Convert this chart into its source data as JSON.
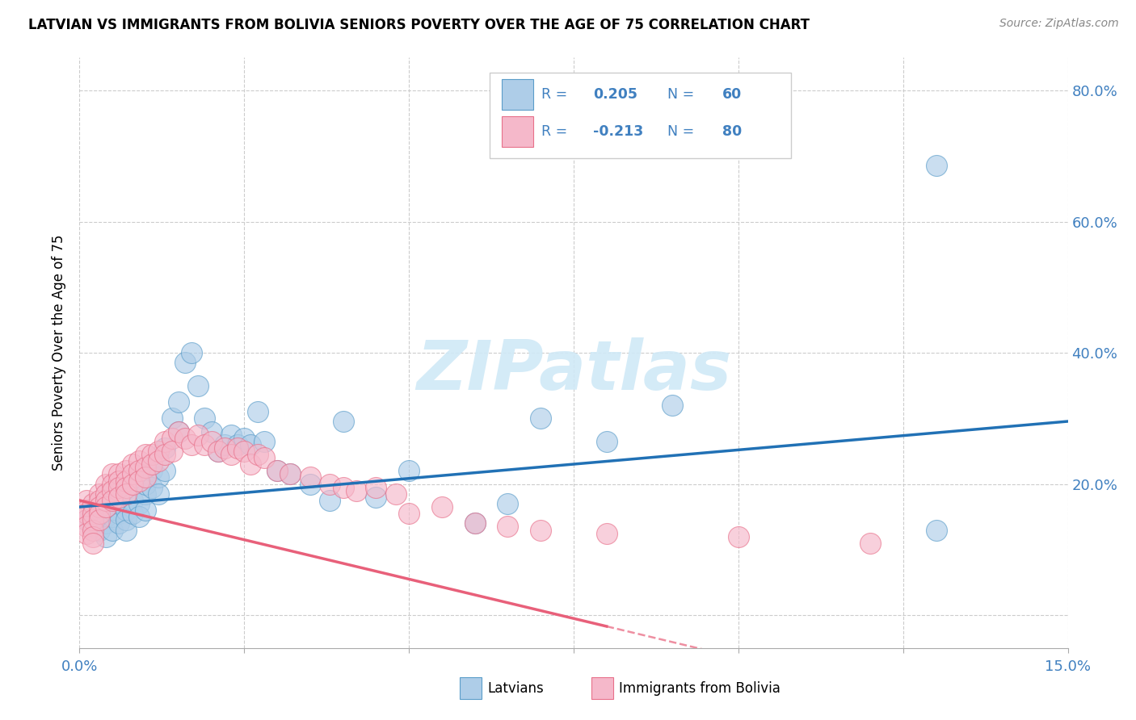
{
  "title": "LATVIAN VS IMMIGRANTS FROM BOLIVIA SENIORS POVERTY OVER THE AGE OF 75 CORRELATION CHART",
  "source": "Source: ZipAtlas.com",
  "ylabel": "Seniors Poverty Over the Age of 75",
  "r1": 0.205,
  "n1": 60,
  "r2": -0.213,
  "n2": 80,
  "blue_fill": "#aecde8",
  "blue_edge": "#5b9dc9",
  "pink_fill": "#f5b8ca",
  "pink_edge": "#e8708a",
  "blue_line": "#2171b5",
  "pink_line": "#e8607a",
  "watermark_color": "#d0e9f7",
  "grid_color": "#cccccc",
  "tick_color": "#4080c0",
  "xlim": [
    0.0,
    0.15
  ],
  "ylim": [
    -0.05,
    0.85
  ],
  "lv_x": [
    0.001,
    0.002,
    0.002,
    0.003,
    0.003,
    0.003,
    0.004,
    0.004,
    0.004,
    0.005,
    0.005,
    0.005,
    0.006,
    0.006,
    0.007,
    0.007,
    0.007,
    0.008,
    0.008,
    0.009,
    0.009,
    0.01,
    0.01,
    0.01,
    0.011,
    0.011,
    0.012,
    0.012,
    0.013,
    0.013,
    0.014,
    0.015,
    0.015,
    0.016,
    0.017,
    0.018,
    0.019,
    0.02,
    0.021,
    0.022,
    0.023,
    0.024,
    0.025,
    0.026,
    0.027,
    0.028,
    0.03,
    0.032,
    0.035,
    0.038,
    0.04,
    0.045,
    0.05,
    0.06,
    0.065,
    0.07,
    0.08,
    0.09,
    0.13,
    0.13
  ],
  "lv_y": [
    0.145,
    0.155,
    0.135,
    0.145,
    0.13,
    0.16,
    0.14,
    0.15,
    0.12,
    0.15,
    0.16,
    0.13,
    0.155,
    0.14,
    0.16,
    0.145,
    0.13,
    0.175,
    0.155,
    0.17,
    0.15,
    0.185,
    0.2,
    0.16,
    0.22,
    0.195,
    0.21,
    0.185,
    0.255,
    0.22,
    0.3,
    0.325,
    0.28,
    0.385,
    0.4,
    0.35,
    0.3,
    0.28,
    0.25,
    0.26,
    0.275,
    0.26,
    0.27,
    0.26,
    0.31,
    0.265,
    0.22,
    0.215,
    0.2,
    0.175,
    0.295,
    0.18,
    0.22,
    0.14,
    0.17,
    0.3,
    0.265,
    0.32,
    0.685,
    0.13
  ],
  "bo_x": [
    0.001,
    0.001,
    0.001,
    0.001,
    0.001,
    0.001,
    0.002,
    0.002,
    0.002,
    0.002,
    0.002,
    0.002,
    0.003,
    0.003,
    0.003,
    0.003,
    0.003,
    0.004,
    0.004,
    0.004,
    0.004,
    0.005,
    0.005,
    0.005,
    0.005,
    0.006,
    0.006,
    0.006,
    0.006,
    0.007,
    0.007,
    0.007,
    0.007,
    0.008,
    0.008,
    0.008,
    0.009,
    0.009,
    0.009,
    0.01,
    0.01,
    0.01,
    0.011,
    0.011,
    0.012,
    0.012,
    0.013,
    0.013,
    0.014,
    0.014,
    0.015,
    0.016,
    0.017,
    0.018,
    0.019,
    0.02,
    0.021,
    0.022,
    0.023,
    0.024,
    0.025,
    0.026,
    0.027,
    0.028,
    0.03,
    0.032,
    0.035,
    0.038,
    0.04,
    0.042,
    0.045,
    0.048,
    0.05,
    0.055,
    0.06,
    0.065,
    0.07,
    0.08,
    0.1,
    0.12
  ],
  "bo_y": [
    0.175,
    0.16,
    0.145,
    0.155,
    0.135,
    0.125,
    0.17,
    0.155,
    0.145,
    0.13,
    0.12,
    0.11,
    0.185,
    0.175,
    0.165,
    0.155,
    0.145,
    0.2,
    0.185,
    0.175,
    0.165,
    0.215,
    0.2,
    0.19,
    0.175,
    0.215,
    0.205,
    0.195,
    0.18,
    0.22,
    0.205,
    0.195,
    0.185,
    0.23,
    0.215,
    0.2,
    0.235,
    0.22,
    0.205,
    0.245,
    0.225,
    0.21,
    0.245,
    0.23,
    0.25,
    0.235,
    0.265,
    0.245,
    0.27,
    0.25,
    0.28,
    0.27,
    0.26,
    0.275,
    0.26,
    0.265,
    0.25,
    0.255,
    0.245,
    0.255,
    0.25,
    0.23,
    0.245,
    0.24,
    0.22,
    0.215,
    0.21,
    0.2,
    0.195,
    0.19,
    0.195,
    0.185,
    0.155,
    0.165,
    0.14,
    0.135,
    0.13,
    0.125,
    0.12,
    0.11
  ]
}
